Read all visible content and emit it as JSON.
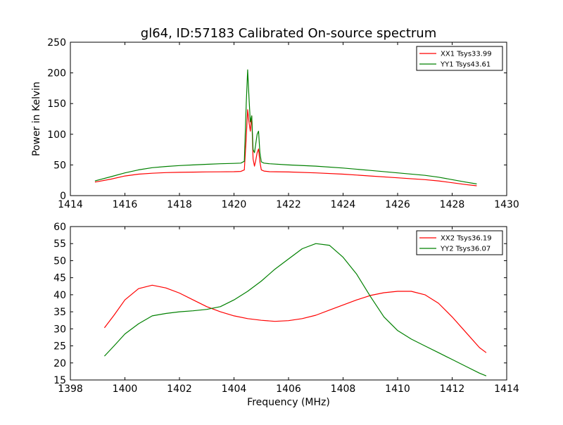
{
  "title": "gl64, ID:57183 Calibrated On-source spectrum",
  "chart_data": [
    {
      "type": "line",
      "title": "gl64, ID:57183 Calibrated On-source spectrum",
      "xlabel": "",
      "ylabel": "Power in Kelvin",
      "xlim": [
        1414,
        1430
      ],
      "ylim": [
        0,
        250
      ],
      "xticks": [
        1414,
        1416,
        1418,
        1420,
        1422,
        1424,
        1426,
        1428,
        1430
      ],
      "yticks": [
        0,
        50,
        100,
        150,
        200,
        250
      ],
      "grid": false,
      "legend_position": "top-right",
      "series": [
        {
          "name": "XX1 Tsys33.99",
          "color": "#ff0000",
          "x": [
            1414.9,
            1415.5,
            1416.0,
            1416.5,
            1417.0,
            1417.5,
            1418.0,
            1418.5,
            1419.0,
            1419.5,
            1420.0,
            1420.25,
            1420.38,
            1420.45,
            1420.5,
            1420.55,
            1420.6,
            1420.65,
            1420.7,
            1420.75,
            1420.8,
            1420.85,
            1420.9,
            1420.95,
            1421.0,
            1421.1,
            1421.3,
            1422.0,
            1423.0,
            1424.0,
            1425.0,
            1426.0,
            1427.0,
            1427.5,
            1428.0,
            1428.5,
            1428.9
          ],
          "y": [
            22,
            27,
            32,
            35,
            36.5,
            37.5,
            38,
            38.3,
            38.6,
            38.8,
            39,
            39.5,
            42,
            95,
            140,
            120,
            105,
            130,
            60,
            48,
            58,
            70,
            76,
            55,
            42,
            40,
            39,
            38.5,
            37,
            35,
            32,
            29,
            26,
            24,
            21,
            18,
            16
          ]
        },
        {
          "name": "YY1 Tsys43.61",
          "color": "#008000",
          "x": [
            1414.9,
            1415.5,
            1416.0,
            1416.5,
            1417.0,
            1417.5,
            1418.0,
            1418.5,
            1419.0,
            1419.5,
            1420.0,
            1420.25,
            1420.38,
            1420.45,
            1420.5,
            1420.55,
            1420.6,
            1420.65,
            1420.7,
            1420.75,
            1420.8,
            1420.85,
            1420.9,
            1420.95,
            1421.0,
            1421.1,
            1421.3,
            1422.0,
            1423.0,
            1424.0,
            1425.0,
            1426.0,
            1427.0,
            1427.5,
            1428.0,
            1428.5,
            1428.9
          ],
          "y": [
            24,
            31,
            37,
            42,
            45.5,
            47.5,
            49,
            50,
            51,
            52,
            52.5,
            53,
            56,
            150,
            205,
            160,
            120,
            130,
            75,
            70,
            85,
            100,
            105,
            70,
            55,
            53,
            52,
            50,
            48,
            45,
            41,
            37,
            33,
            30,
            26,
            22,
            19
          ]
        }
      ]
    },
    {
      "type": "line",
      "title": "",
      "xlabel": "Frequency (MHz)",
      "ylabel": "",
      "xlim": [
        1398,
        1414
      ],
      "ylim": [
        15,
        60
      ],
      "xticks": [
        1398,
        1400,
        1402,
        1404,
        1406,
        1408,
        1410,
        1412,
        1414
      ],
      "yticks": [
        15,
        20,
        25,
        30,
        35,
        40,
        45,
        50,
        55,
        60
      ],
      "grid": false,
      "legend_position": "top-right",
      "series": [
        {
          "name": "XX2 Tsys36.19",
          "color": "#ff0000",
          "x": [
            1399.25,
            1399.6,
            1400.0,
            1400.5,
            1401.0,
            1401.5,
            1402.0,
            1402.5,
            1403.0,
            1403.5,
            1404.0,
            1404.5,
            1405.0,
            1405.5,
            1406.0,
            1406.5,
            1407.0,
            1407.5,
            1408.0,
            1408.5,
            1409.0,
            1409.5,
            1410.0,
            1410.5,
            1411.0,
            1411.5,
            1412.0,
            1412.5,
            1413.0,
            1413.25
          ],
          "y": [
            30.3,
            34,
            38.5,
            41.8,
            42.8,
            42,
            40.5,
            38.5,
            36.5,
            35,
            33.8,
            33,
            32.5,
            32.2,
            32.4,
            33,
            34,
            35.5,
            37,
            38.5,
            39.8,
            40.6,
            41,
            41,
            40,
            37.5,
            33.5,
            29,
            24.5,
            23
          ]
        },
        {
          "name": "YY2 Tsys36.07",
          "color": "#008000",
          "x": [
            1399.25,
            1399.6,
            1400.0,
            1400.5,
            1401.0,
            1401.5,
            1402.0,
            1402.5,
            1403.0,
            1403.5,
            1404.0,
            1404.5,
            1405.0,
            1405.5,
            1406.0,
            1406.5,
            1407.0,
            1407.5,
            1408.0,
            1408.5,
            1409.0,
            1409.5,
            1410.0,
            1410.5,
            1411.0,
            1411.5,
            1412.0,
            1412.5,
            1413.0,
            1413.25
          ],
          "y": [
            22,
            25,
            28.5,
            31.5,
            33.8,
            34.5,
            35,
            35.3,
            35.7,
            36.5,
            38.5,
            41,
            44,
            47.5,
            50.5,
            53.5,
            55,
            54.5,
            51,
            46,
            39.5,
            33.5,
            29.5,
            27,
            25,
            23,
            21,
            19,
            17,
            16.2
          ]
        }
      ]
    }
  ]
}
